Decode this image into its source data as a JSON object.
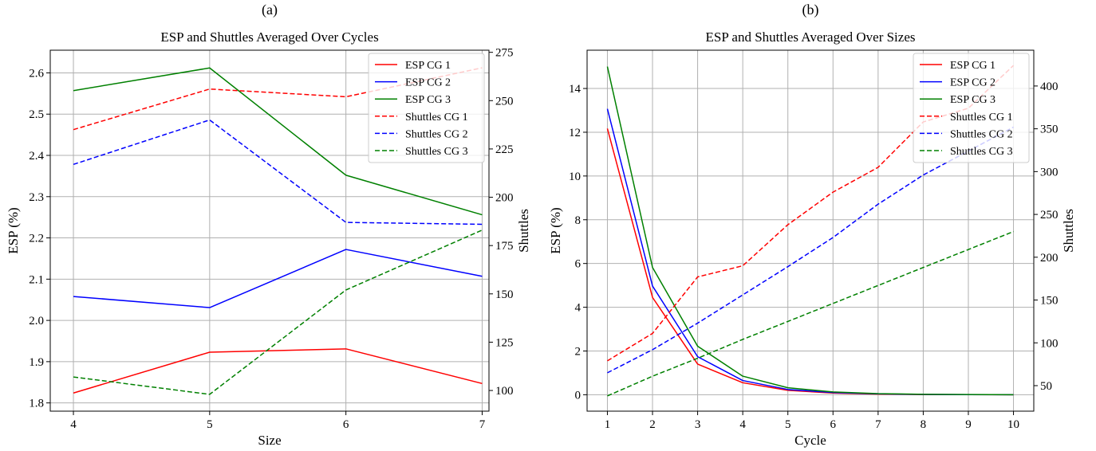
{
  "chart_data": [
    {
      "type": "line",
      "panel_tag": "(a)",
      "title": "ESP and Shuttles Averaged Over Cycles",
      "xlabel": "Size",
      "ylabel": "ESP (%)",
      "y2label": "Shuttles",
      "x": [
        4,
        5,
        6,
        7
      ],
      "xlim": [
        3.83,
        7.05
      ],
      "xticks": [
        4,
        5,
        6,
        7
      ],
      "ylim": [
        1.78,
        2.655
      ],
      "yticks": [
        1.8,
        1.9,
        2.0,
        2.1,
        2.2,
        2.3,
        2.4,
        2.5,
        2.6
      ],
      "y2lim": [
        89.3,
        276.1
      ],
      "y2ticks": [
        100,
        125,
        150,
        175,
        200,
        225,
        250,
        275
      ],
      "grid": true,
      "legend_position": "top-right",
      "series": [
        {
          "name": "ESP CG 1",
          "axis": "left",
          "style": "solid",
          "color": "#ff0000",
          "values": [
            1.824,
            1.923,
            1.931,
            1.847
          ]
        },
        {
          "name": "ESP CG 2",
          "axis": "left",
          "style": "solid",
          "color": "#0000ff",
          "values": [
            2.058,
            2.031,
            2.172,
            2.107
          ]
        },
        {
          "name": "ESP CG 3",
          "axis": "left",
          "style": "solid",
          "color": "#008000",
          "values": [
            2.557,
            2.612,
            2.352,
            2.256
          ]
        },
        {
          "name": "Shuttles CG 1",
          "axis": "right",
          "style": "dashed",
          "color": "#ff0000",
          "values": [
            235,
            256,
            252,
            267
          ]
        },
        {
          "name": "Shuttles CG 2",
          "axis": "right",
          "style": "dashed",
          "color": "#0000ff",
          "values": [
            217,
            240,
            187,
            186
          ]
        },
        {
          "name": "Shuttles CG 3",
          "axis": "right",
          "style": "dashed",
          "color": "#008000",
          "values": [
            107,
            98,
            152,
            183
          ]
        }
      ]
    },
    {
      "type": "line",
      "panel_tag": "(b)",
      "title": "ESP and Shuttles Averaged Over Sizes",
      "xlabel": "Cycle",
      "ylabel": "ESP (%)",
      "y2label": "Shuttles",
      "x": [
        1,
        2,
        3,
        4,
        5,
        6,
        7,
        8,
        9,
        10
      ],
      "xlim": [
        0.55,
        10.45
      ],
      "xticks": [
        1,
        2,
        3,
        4,
        5,
        6,
        7,
        8,
        9,
        10
      ],
      "ylim": [
        -0.75,
        15.75
      ],
      "yticks": [
        0,
        2,
        4,
        6,
        8,
        10,
        12,
        14
      ],
      "y2lim": [
        20.2,
        441.8
      ],
      "y2ticks": [
        50,
        100,
        150,
        200,
        250,
        300,
        350,
        400
      ],
      "grid": true,
      "legend_position": "top-right",
      "series": [
        {
          "name": "ESP CG 1",
          "axis": "left",
          "style": "solid",
          "color": "#ff0000",
          "values": [
            12.17,
            4.45,
            1.4,
            0.55,
            0.2,
            0.08,
            0.03,
            0.01,
            0.005,
            0.0
          ]
        },
        {
          "name": "ESP CG 2",
          "axis": "left",
          "style": "solid",
          "color": "#0000ff",
          "values": [
            13.07,
            4.97,
            1.74,
            0.65,
            0.24,
            0.1,
            0.04,
            0.015,
            0.008,
            0.0
          ]
        },
        {
          "name": "ESP CG 3",
          "axis": "left",
          "style": "solid",
          "color": "#008000",
          "values": [
            15.0,
            5.82,
            2.22,
            0.85,
            0.32,
            0.13,
            0.05,
            0.02,
            0.01,
            0.0
          ]
        },
        {
          "name": "Shuttles CG 1",
          "axis": "right",
          "style": "dashed",
          "color": "#ff0000",
          "values": [
            79,
            111,
            177,
            190,
            238,
            276,
            305,
            358,
            374,
            424
          ]
        },
        {
          "name": "Shuttles CG 2",
          "axis": "right",
          "style": "dashed",
          "color": "#0000ff",
          "values": [
            65,
            92,
            123,
            156,
            189,
            223,
            262,
            296,
            324,
            352
          ]
        },
        {
          "name": "Shuttles CG 3",
          "axis": "right",
          "style": "dashed",
          "color": "#008000",
          "values": [
            38,
            61,
            82,
            104,
            125,
            146,
            167,
            188,
            209,
            230
          ]
        }
      ]
    }
  ]
}
